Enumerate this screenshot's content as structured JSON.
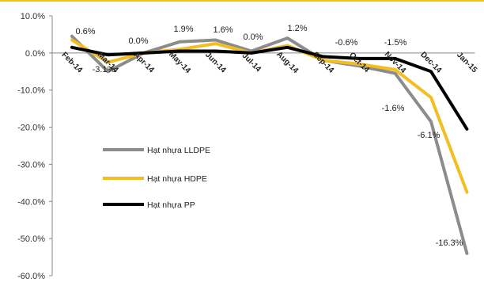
{
  "chart_data": {
    "type": "line",
    "x": [
      "Feb-14",
      "Mar-14",
      "Apr-14",
      "May-14",
      "Jun-14",
      "Jul-14",
      "Aug-14",
      "Sep-14",
      "Oct-14",
      "Nov-14",
      "Dec-14",
      "Jan-15"
    ],
    "ylim": [
      -60,
      10
    ],
    "yticks": [
      10,
      0,
      -10,
      -20,
      -30,
      -40,
      -50,
      -60
    ],
    "ytick_labels": [
      "10.0%",
      "0.0%",
      "-10.0%",
      "-20.0%",
      "-30.0%",
      "-40.0%",
      "-50.0%",
      "-60.0%"
    ],
    "grid": false,
    "legend_position": "center-left",
    "series": [
      {
        "name": "Hạt nhựa LLDPE",
        "color": "#8c8c8c",
        "values": [
          4.5,
          -5.0,
          0.0,
          3.0,
          3.5,
          0.5,
          4.0,
          -2.0,
          -3.5,
          -5.5,
          -18.5,
          -54.0
        ]
      },
      {
        "name": "Hạt nhựa HDPE",
        "color": "#f2be22",
        "values": [
          3.5,
          -2.5,
          0.0,
          1.0,
          2.5,
          0.0,
          2.0,
          -2.0,
          -3.0,
          -4.5,
          -12.0,
          -37.5
        ]
      },
      {
        "name": "Hạt nhựa PP",
        "color": "#000000",
        "values": [
          1.5,
          -0.5,
          0.0,
          0.5,
          0.5,
          0.0,
          1.5,
          -1.0,
          -1.5,
          -1.5,
          -5.0,
          -20.5
        ]
      }
    ],
    "data_labels": [
      "0.6%",
      "-3.1%",
      "0.0%",
      "1.9%",
      "1.6%",
      "0.0%",
      "1.2%",
      "-0.6%",
      "-1.5%",
      "-1.6%",
      "-6.1%",
      "-16.3%"
    ]
  }
}
